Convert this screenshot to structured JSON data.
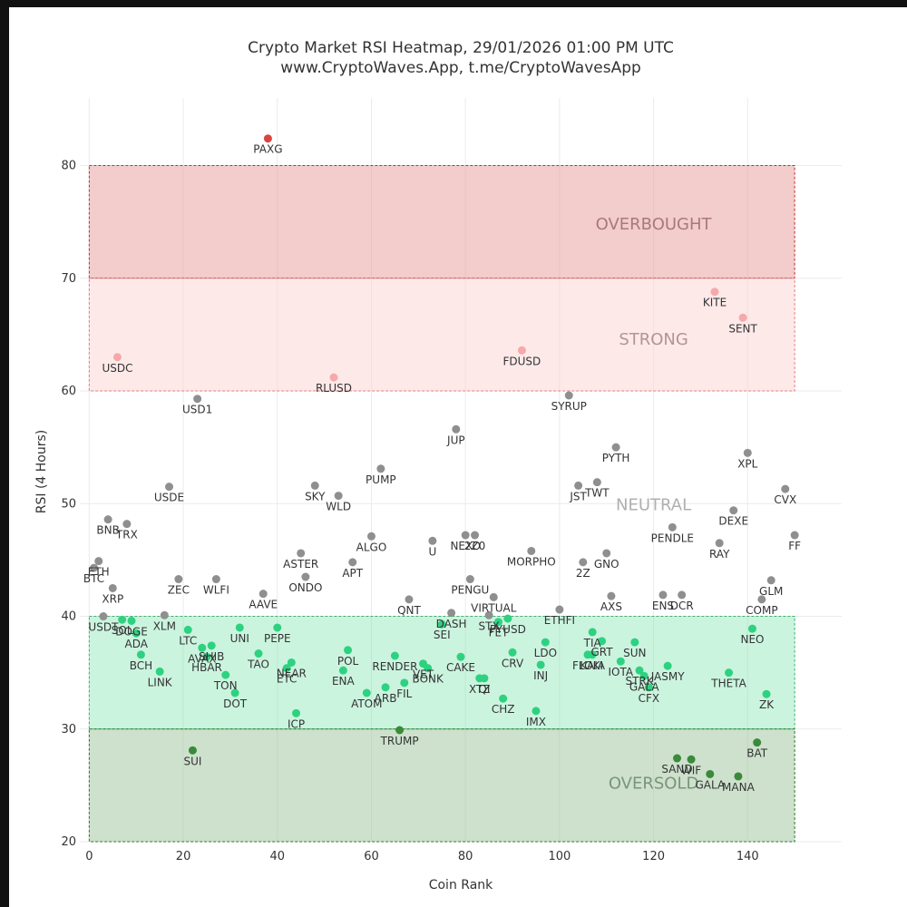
{
  "chart_data": {
    "type": "scatter",
    "title_line1": "Crypto Market RSI Heatmap, 29/01/2026 01:00 PM UTC",
    "title_line2": "www.CryptoWaves.App, t.me/CryptoWavesApp",
    "xlabel": "Coin Rank",
    "ylabel": "RSI (4 Hours)",
    "xlim": [
      -2,
      160
    ],
    "ylim": [
      20,
      86
    ],
    "xticks": [
      0,
      20,
      40,
      60,
      80,
      100,
      120,
      140
    ],
    "yticks": [
      20,
      30,
      40,
      50,
      60,
      70,
      80
    ],
    "grid": true,
    "zones": [
      {
        "name": "OVERBOUGHT",
        "label": "OVERBOUGHT",
        "y0": 70,
        "y1": 80,
        "x0": 0,
        "x1": 150,
        "fill": "#e79a9a",
        "fill_opacity": 0.5,
        "border": "#c03030",
        "text_color": "#a87a7a",
        "label_x": 120,
        "label_y": 74.8
      },
      {
        "name": "STRONG",
        "label": "STRONG",
        "y0": 60,
        "y1": 70,
        "x0": 0,
        "x1": 150,
        "fill": "#fdd4d4",
        "fill_opacity": 0.5,
        "border": "#e08080",
        "text_color": "#b29494",
        "label_x": 120,
        "label_y": 64.6
      },
      {
        "name": "NEUTRAL",
        "label": "NEUTRAL",
        "y0": 40,
        "y1": 60,
        "x0": 0,
        "x1": 150,
        "fill": "#ffffff",
        "fill_opacity": 0,
        "border": "none",
        "text_color": "#b0b0b0",
        "label_x": 120,
        "label_y": 49.9
      },
      {
        "name": "WEAK",
        "label": "",
        "y0": 30,
        "y1": 40,
        "x0": 0,
        "x1": 150,
        "fill": "#7ce3ae",
        "fill_opacity": 0.4,
        "border": "#40b070",
        "text_color": "#7a9a8a",
        "label_x": 120,
        "label_y": 35
      },
      {
        "name": "OVERSOLD",
        "label": "OVERSOLD",
        "y0": 20,
        "y1": 30,
        "x0": 0,
        "x1": 150,
        "fill": "#9cc49c",
        "fill_opacity": 0.5,
        "border": "#2a7a2a",
        "text_color": "#7a947a",
        "label_x": 120,
        "label_y": 25.2
      }
    ],
    "colors": {
      "overbought": "#d8453f",
      "strong": "#f6a9a9",
      "neutral": "#8f8f8f",
      "weak": "#2dd280",
      "oversold": "#3a8a3a"
    },
    "points": [
      {
        "name": "BTC",
        "x": 1,
        "y": 44.3
      },
      {
        "name": "ETH",
        "x": 2,
        "y": 44.9
      },
      {
        "name": "USDT",
        "x": 3,
        "y": 40.0
      },
      {
        "name": "BNB",
        "x": 4,
        "y": 48.6
      },
      {
        "name": "XRP",
        "x": 5,
        "y": 42.5
      },
      {
        "name": "USDC",
        "x": 6,
        "y": 63.0
      },
      {
        "name": "SOL",
        "x": 7,
        "y": 39.7
      },
      {
        "name": "TRX",
        "x": 8,
        "y": 48.2
      },
      {
        "name": "DOGE",
        "x": 9,
        "y": 39.6
      },
      {
        "name": "ADA",
        "x": 10,
        "y": 38.5
      },
      {
        "name": "BCH",
        "x": 11,
        "y": 36.6
      },
      {
        "name": "LINK",
        "x": 15,
        "y": 35.1
      },
      {
        "name": "XLM",
        "x": 16,
        "y": 40.1
      },
      {
        "name": "USDE",
        "x": 17,
        "y": 51.5
      },
      {
        "name": "ZEC",
        "x": 19,
        "y": 43.3
      },
      {
        "name": "LTC",
        "x": 21,
        "y": 38.8
      },
      {
        "name": "SUI",
        "x": 22,
        "y": 28.1
      },
      {
        "name": "USD1",
        "x": 23,
        "y": 59.3
      },
      {
        "name": "AVAX",
        "x": 24,
        "y": 37.2
      },
      {
        "name": "HBAR",
        "x": 25,
        "y": 36.4
      },
      {
        "name": "SHIB",
        "x": 26,
        "y": 37.4
      },
      {
        "name": "WLFI",
        "x": 27,
        "y": 43.3
      },
      {
        "name": "TON",
        "x": 29,
        "y": 34.8
      },
      {
        "name": "DOT",
        "x": 31,
        "y": 33.2
      },
      {
        "name": "UNI",
        "x": 32,
        "y": 39.0
      },
      {
        "name": "TAO",
        "x": 36,
        "y": 36.7
      },
      {
        "name": "AAVE",
        "x": 37,
        "y": 42.0
      },
      {
        "name": "PAXG",
        "x": 38,
        "y": 82.4
      },
      {
        "name": "PEPE",
        "x": 40,
        "y": 39.0
      },
      {
        "name": "ETC",
        "x": 42,
        "y": 35.4
      },
      {
        "name": "NEAR",
        "x": 43,
        "y": 35.9
      },
      {
        "name": "ICP",
        "x": 44,
        "y": 31.4
      },
      {
        "name": "ASTER",
        "x": 45,
        "y": 45.6
      },
      {
        "name": "ONDO",
        "x": 46,
        "y": 43.5
      },
      {
        "name": "SKY",
        "x": 48,
        "y": 51.6
      },
      {
        "name": "RLUSD",
        "x": 52,
        "y": 61.2
      },
      {
        "name": "WLD",
        "x": 53,
        "y": 50.7
      },
      {
        "name": "ENA",
        "x": 54,
        "y": 35.2
      },
      {
        "name": "POL",
        "x": 55,
        "y": 37.0
      },
      {
        "name": "APT",
        "x": 56,
        "y": 44.8
      },
      {
        "name": "ATOM",
        "x": 59,
        "y": 33.2
      },
      {
        "name": "ALGO",
        "x": 60,
        "y": 47.1
      },
      {
        "name": "PUMP",
        "x": 62,
        "y": 53.1
      },
      {
        "name": "ARB",
        "x": 63,
        "y": 33.7
      },
      {
        "name": "RENDER",
        "x": 65,
        "y": 36.5
      },
      {
        "name": "TRUMP",
        "x": 66,
        "y": 29.9
      },
      {
        "name": "FIL",
        "x": 67,
        "y": 34.1
      },
      {
        "name": "QNT",
        "x": 68,
        "y": 41.5
      },
      {
        "name": "VET",
        "x": 71,
        "y": 35.8
      },
      {
        "name": "BONK",
        "x": 72,
        "y": 35.4
      },
      {
        "name": "U",
        "x": 73,
        "y": 46.7
      },
      {
        "name": "SEI",
        "x": 75,
        "y": 39.3
      },
      {
        "name": "DASH",
        "x": 77,
        "y": 40.3
      },
      {
        "name": "JUP",
        "x": 78,
        "y": 56.6
      },
      {
        "name": "CAKE",
        "x": 79,
        "y": 36.4
      },
      {
        "name": "NEXO",
        "x": 80,
        "y": 47.2
      },
      {
        "name": "PENGU",
        "x": 81,
        "y": 43.3
      },
      {
        "name": "2Z0",
        "x": 82,
        "y": 47.2
      },
      {
        "name": "XTZ",
        "x": 83,
        "y": 34.5
      },
      {
        "name": "QI",
        "x": 84,
        "y": 34.5
      },
      {
        "name": "STX",
        "x": 85,
        "y": 40.1
      },
      {
        "name": "VIRTUAL",
        "x": 86,
        "y": 41.7
      },
      {
        "name": "FET",
        "x": 87,
        "y": 39.5
      },
      {
        "name": "CHZ",
        "x": 88,
        "y": 32.7
      },
      {
        "name": "PYUSD",
        "x": 89,
        "y": 39.8
      },
      {
        "name": "CRV",
        "x": 90,
        "y": 36.8
      },
      {
        "name": "FDUSD",
        "x": 92,
        "y": 63.6
      },
      {
        "name": "MORPHO",
        "x": 94,
        "y": 45.8
      },
      {
        "name": "IMX",
        "x": 95,
        "y": 31.6
      },
      {
        "name": "INJ",
        "x": 96,
        "y": 35.7
      },
      {
        "name": "LDO",
        "x": 97,
        "y": 37.7
      },
      {
        "name": "ETHFI",
        "x": 100,
        "y": 40.6
      },
      {
        "name": "SYRUP",
        "x": 102,
        "y": 59.6
      },
      {
        "name": "JST",
        "x": 104,
        "y": 51.6
      },
      {
        "name": "2Z",
        "x": 105,
        "y": 44.8
      },
      {
        "name": "FLOKI",
        "x": 106,
        "y": 36.6
      },
      {
        "name": "KAIA",
        "x": 107,
        "y": 36.6
      },
      {
        "name": "TIA",
        "x": 107,
        "y": 38.6
      },
      {
        "name": "TWT",
        "x": 108,
        "y": 51.9
      },
      {
        "name": "GRT",
        "x": 109,
        "y": 37.8
      },
      {
        "name": "GNO",
        "x": 110,
        "y": 45.6
      },
      {
        "name": "AXS",
        "x": 111,
        "y": 41.8
      },
      {
        "name": "PYTH",
        "x": 112,
        "y": 55.0
      },
      {
        "name": "IOTA",
        "x": 113,
        "y": 36.0
      },
      {
        "name": "SUN",
        "x": 116,
        "y": 37.7
      },
      {
        "name": "STRK",
        "x": 117,
        "y": 35.2
      },
      {
        "name": "GALA",
        "x": 118,
        "y": 34.7
      },
      {
        "name": "CFX",
        "x": 119,
        "y": 33.7
      },
      {
        "name": "ENS",
        "x": 122,
        "y": 41.9
      },
      {
        "name": "JASMY",
        "x": 123,
        "y": 35.6
      },
      {
        "name": "PENDLE",
        "x": 124,
        "y": 47.9
      },
      {
        "name": "SAND",
        "x": 125,
        "y": 27.4
      },
      {
        "name": "DCR",
        "x": 126,
        "y": 41.9
      },
      {
        "name": "WIF",
        "x": 128,
        "y": 27.3
      },
      {
        "name": "GALA",
        "x": 132,
        "y": 26.0
      },
      {
        "name": "KITE",
        "x": 133,
        "y": 68.8
      },
      {
        "name": "RAY",
        "x": 134,
        "y": 46.5
      },
      {
        "name": "THETA",
        "x": 136,
        "y": 35.0
      },
      {
        "name": "DEXE",
        "x": 137,
        "y": 49.4
      },
      {
        "name": "MANA",
        "x": 138,
        "y": 25.8
      },
      {
        "name": "SENT",
        "x": 139,
        "y": 66.5
      },
      {
        "name": "XPL",
        "x": 140,
        "y": 54.5
      },
      {
        "name": "NEO",
        "x": 141,
        "y": 38.9
      },
      {
        "name": "BAT",
        "x": 142,
        "y": 28.8
      },
      {
        "name": "COMP",
        "x": 143,
        "y": 41.5
      },
      {
        "name": "ZK",
        "x": 144,
        "y": 33.1
      },
      {
        "name": "GLM",
        "x": 145,
        "y": 43.2
      },
      {
        "name": "CVX",
        "x": 148,
        "y": 51.3
      },
      {
        "name": "FF",
        "x": 150,
        "y": 47.2
      }
    ]
  }
}
